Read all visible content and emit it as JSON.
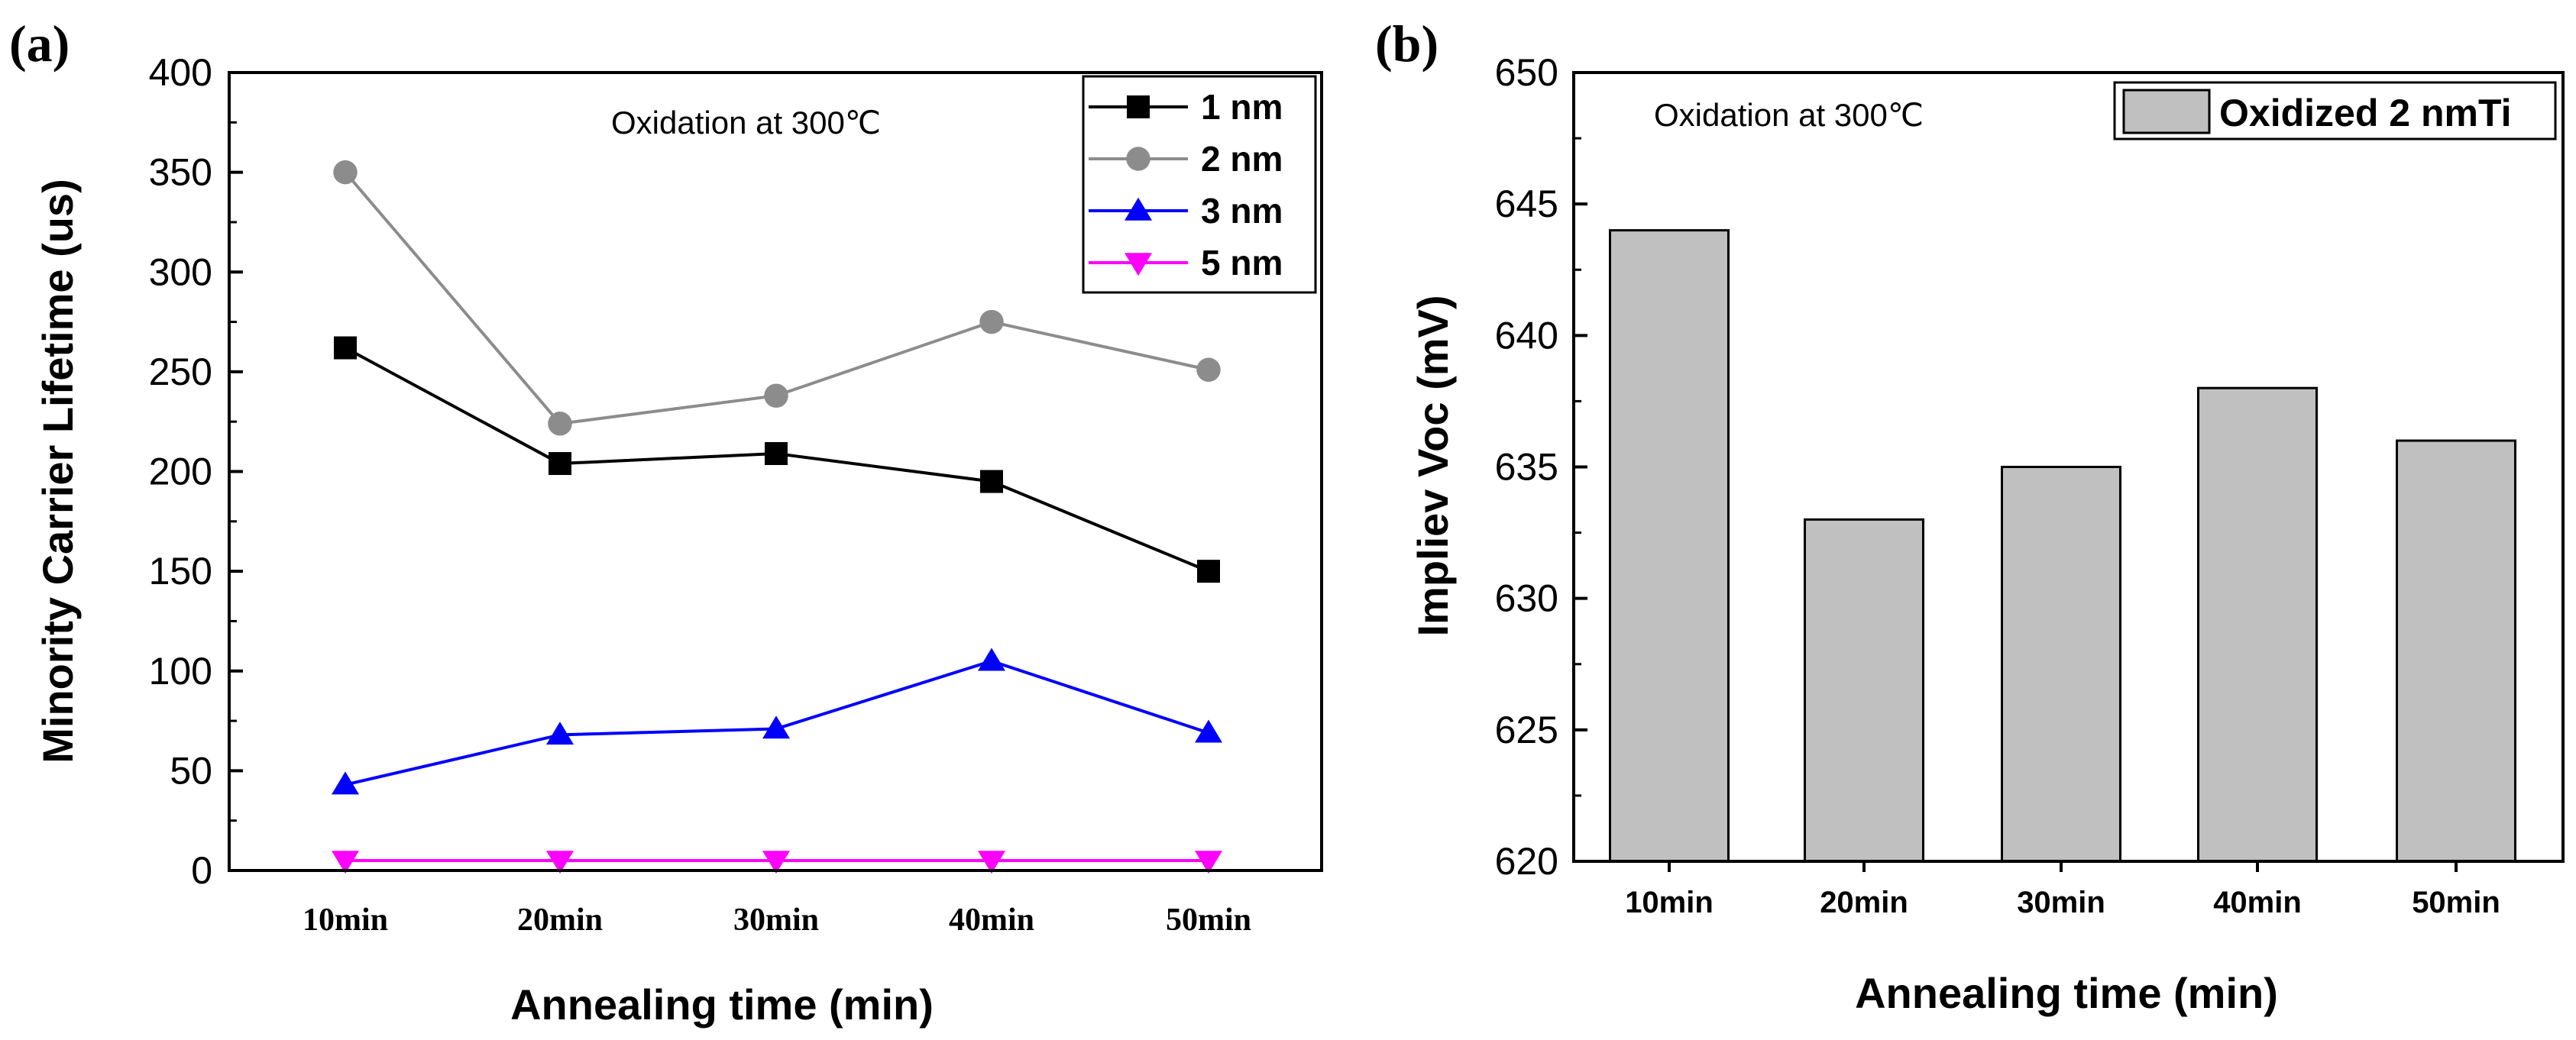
{
  "chart_data": [
    {
      "type": "line",
      "panel": "(a)",
      "annotation": "Oxidation at 300℃",
      "xlabel": "Annealing time (min)",
      "ylabel": "Minority Carrier Lifetime (us)",
      "categories": [
        "10min",
        "20min",
        "30min",
        "40min",
        "50min"
      ],
      "ylim": [
        0,
        400
      ],
      "yticks": [
        0,
        50,
        100,
        150,
        200,
        250,
        300,
        350,
        400
      ],
      "ytick_labels": [
        "0",
        "50",
        "100",
        "150",
        "200",
        "250",
        "300",
        "350",
        "400"
      ],
      "legend_position": "top-right",
      "series": [
        {
          "name": "1 nm",
          "values": [
            262,
            204,
            209,
            195,
            150
          ],
          "color": "#000000",
          "marker": "square"
        },
        {
          "name": "2 nm",
          "values": [
            350,
            224,
            238,
            275,
            251
          ],
          "color": "#8c8c8c",
          "marker": "circle"
        },
        {
          "name": "3 nm",
          "values": [
            43,
            68,
            71,
            105,
            69
          ],
          "color": "#0000ff",
          "marker": "triangle-up"
        },
        {
          "name": "5 nm",
          "values": [
            5,
            5,
            5,
            5,
            5
          ],
          "color": "#ff00ff",
          "marker": "triangle-down"
        }
      ]
    },
    {
      "type": "bar",
      "panel": "(b)",
      "annotation": "Oxidation at 300℃",
      "xlabel": "Annealing time (min)",
      "ylabel": "Impliev Voc (mV)",
      "categories": [
        "10min",
        "20min",
        "30min",
        "40min",
        "50min"
      ],
      "ylim": [
        620,
        650
      ],
      "yticks": [
        620,
        625,
        630,
        635,
        640,
        645,
        650
      ],
      "ytick_labels": [
        "620",
        "625",
        "630",
        "635",
        "640",
        "645",
        "650"
      ],
      "legend_position": "top-right",
      "series": [
        {
          "name": "Oxidized 2 nmTi",
          "values": [
            644,
            633,
            635,
            638,
            636
          ],
          "color": "#c0c0c0"
        }
      ]
    }
  ]
}
